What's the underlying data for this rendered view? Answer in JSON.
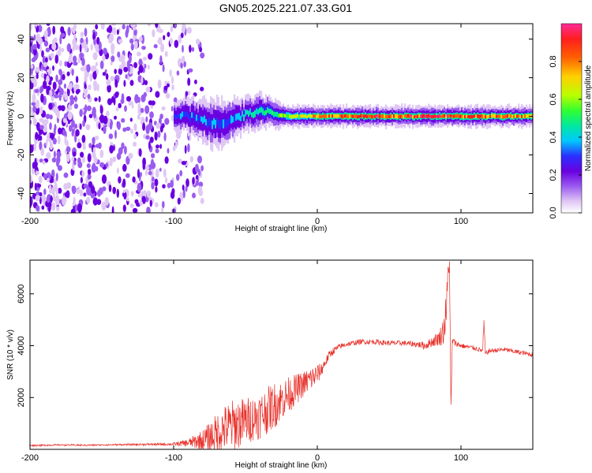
{
  "title": "GN05.2025.221.07.33.G01",
  "colors": {
    "snr_line": "#e8302a",
    "colormap": [
      "#ffffff",
      "#e0c8f4",
      "#9a5cf0",
      "#6a00e0",
      "#2a30ff",
      "#00c8ff",
      "#00e8a0",
      "#30ff30",
      "#b8ff00",
      "#ffd000",
      "#ff6000",
      "#ff1e1e",
      "#ff2a9a"
    ]
  },
  "chart_data": [
    {
      "type": "heatmap",
      "title": "GN05.2025.221.07.33.G01",
      "xlabel": "Height of straight line (km)",
      "ylabel": "Frequency (Hz)",
      "xlim": [
        -200,
        150
      ],
      "ylim": [
        -50,
        48
      ],
      "xticks": [
        {
          "value": -200,
          "label": "-200"
        },
        {
          "value": -100,
          "label": "-100"
        },
        {
          "value": 0,
          "label": "0"
        },
        {
          "value": 100,
          "label": "100"
        }
      ],
      "yticks": [
        {
          "value": -40,
          "label": "-40"
        },
        {
          "value": -20,
          "label": "-20"
        },
        {
          "value": 0,
          "label": "0"
        },
        {
          "value": 20,
          "label": "20"
        },
        {
          "value": 40,
          "label": "40"
        }
      ],
      "colorbar": {
        "label": "Normalized spectral amplitude",
        "range": [
          0,
          1
        ],
        "ticks": [
          {
            "value": 0.0,
            "label": "0.0"
          },
          {
            "value": 0.2,
            "label": "0.2"
          },
          {
            "value": 0.4,
            "label": "0.4"
          },
          {
            "value": 0.6,
            "label": "0.6"
          },
          {
            "value": 0.8,
            "label": "0.8"
          }
        ]
      },
      "noise_region": {
        "x_start": -200,
        "x_end": -80,
        "y_start": -50,
        "y_end": 48
      },
      "signal_track": [
        {
          "x": -100,
          "f": 1,
          "width": 4,
          "amp": 0.4
        },
        {
          "x": -90,
          "f": 0,
          "width": 5,
          "amp": 0.35
        },
        {
          "x": -80,
          "f": -2,
          "width": 6,
          "amp": 0.4
        },
        {
          "x": -70,
          "f": -4,
          "width": 7,
          "amp": 0.35
        },
        {
          "x": -60,
          "f": -2,
          "width": 6,
          "amp": 0.4
        },
        {
          "x": -50,
          "f": 1,
          "width": 5,
          "amp": 0.45
        },
        {
          "x": -40,
          "f": 3,
          "width": 5,
          "amp": 0.5
        },
        {
          "x": -30,
          "f": 1,
          "width": 4,
          "amp": 0.55
        },
        {
          "x": -20,
          "f": 0,
          "width": 3,
          "amp": 0.65
        },
        {
          "x": -10,
          "f": 0,
          "width": 3,
          "amp": 0.7
        },
        {
          "x": 0,
          "f": 0,
          "width": 3,
          "amp": 0.8
        },
        {
          "x": 10,
          "f": 0,
          "width": 3,
          "amp": 0.85
        },
        {
          "x": 20,
          "f": 0,
          "width": 3,
          "amp": 0.85
        },
        {
          "x": 40,
          "f": 0,
          "width": 3,
          "amp": 0.9
        },
        {
          "x": 60,
          "f": 0,
          "width": 3,
          "amp": 0.85
        },
        {
          "x": 80,
          "f": 0,
          "width": 3,
          "amp": 0.95
        },
        {
          "x": 90,
          "f": 0,
          "width": 3,
          "amp": 0.9
        },
        {
          "x": 100,
          "f": 0,
          "width": 3,
          "amp": 0.9
        },
        {
          "x": 120,
          "f": 0,
          "width": 3,
          "amp": 0.85
        },
        {
          "x": 150,
          "f": 0,
          "width": 3,
          "amp": 0.8
        }
      ]
    },
    {
      "type": "line",
      "xlabel": "Height of straight line (km)",
      "ylabel": "SNR (10 * v/v)",
      "xlim": [
        -200,
        150
      ],
      "ylim": [
        0,
        7300
      ],
      "xticks": [
        {
          "value": -200,
          "label": "-200"
        },
        {
          "value": -100,
          "label": "-100"
        },
        {
          "value": 0,
          "label": "0"
        },
        {
          "value": 100,
          "label": "100"
        }
      ],
      "yticks": [
        {
          "value": 2000,
          "label": "2000"
        },
        {
          "value": 4000,
          "label": "4000"
        },
        {
          "value": 6000,
          "label": "6000"
        }
      ],
      "series": [
        {
          "x": [
            -200,
            -180,
            -160,
            -140,
            -120,
            -100,
            -90,
            -80,
            -75,
            -70,
            -65,
            -60,
            -55,
            -50,
            -45,
            -40,
            -35,
            -30,
            -25,
            -20,
            -15,
            -10,
            -5,
            0,
            2,
            4,
            6,
            8,
            10,
            15,
            20,
            25,
            30,
            40,
            50,
            60,
            70,
            75,
            80,
            85,
            88,
            90,
            91,
            92,
            93,
            94,
            96,
            100,
            110,
            115,
            116,
            117,
            120,
            130,
            140,
            150
          ],
          "y": [
            150,
            170,
            160,
            180,
            190,
            200,
            250,
            350,
            450,
            600,
            800,
            900,
            1000,
            1100,
            1200,
            1300,
            1500,
            1700,
            1900,
            2100,
            2300,
            2500,
            2700,
            2900,
            3000,
            3200,
            3400,
            3600,
            3750,
            3950,
            4050,
            4100,
            4150,
            4150,
            4100,
            4100,
            4050,
            4000,
            4150,
            4300,
            4600,
            5500,
            6800,
            7200,
            1500,
            4200,
            4100,
            4000,
            3900,
            3800,
            4800,
            3700,
            3800,
            3850,
            3750,
            3650
          ],
          "jitter": [
            30,
            30,
            30,
            30,
            40,
            60,
            150,
            400,
            600,
            800,
            900,
            1000,
            1000,
            900,
            900,
            900,
            900,
            900,
            800,
            700,
            600,
            500,
            500,
            400,
            300,
            250,
            200,
            180,
            150,
            120,
            100,
            100,
            100,
            100,
            100,
            100,
            120,
            150,
            200,
            300,
            600,
            800,
            500,
            300,
            300,
            150,
            120,
            100,
            90,
            90,
            300,
            90,
            90,
            90,
            90,
            90
          ]
        }
      ]
    }
  ]
}
